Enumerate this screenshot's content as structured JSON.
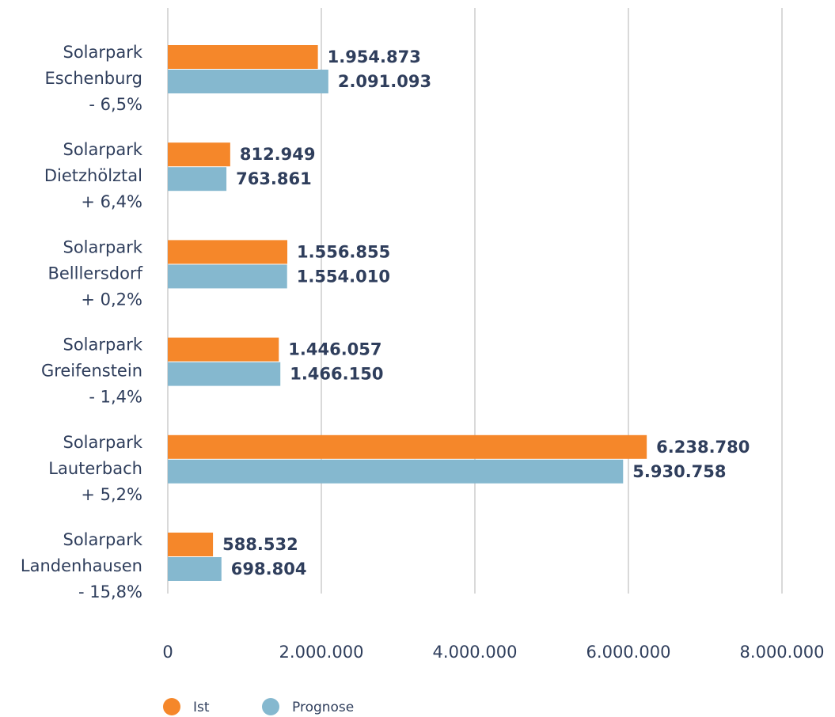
{
  "chart_data": {
    "type": "barh",
    "categories": [
      [
        "Solarpark",
        "Eschenburg",
        "- 6,5%"
      ],
      [
        "Solarpark",
        "Dietzhölztal",
        "+ 6,4%"
      ],
      [
        "Solarpark",
        "Belllersdorf",
        "+ 0,2%"
      ],
      [
        "Solarpark",
        "Greifenstein",
        "- 1,4%"
      ],
      [
        "Solarpark",
        "Lauterbach",
        "+ 5,2%"
      ],
      [
        "Solarpark",
        "Landenhausen",
        "- 15,8%"
      ]
    ],
    "series": [
      {
        "name": "Ist",
        "color": "#f5872a",
        "values": [
          1954873,
          812949,
          1556855,
          1446057,
          6238780,
          588532
        ],
        "value_labels": [
          "1.954.873",
          "812.949",
          "1.556.855",
          "1.446.057",
          "6.238.780",
          "588.532"
        ]
      },
      {
        "name": "Prognose",
        "color": "#85b8cf",
        "values": [
          2091093,
          763861,
          1554010,
          1466150,
          5930758,
          698804
        ],
        "value_labels": [
          "2.091.093",
          "763.861",
          "1.554.010",
          "1.466.150",
          "5.930.758",
          "698.804"
        ]
      }
    ],
    "xlim": [
      0,
      8000000
    ],
    "xticks": [
      0,
      {
        "value": 2000000,
        "label": "2.000.000"
      },
      {
        "value": 4000000,
        "label": "4.000.000"
      },
      {
        "value": 6000000,
        "label": "6.000.000"
      },
      {
        "value": 8000000,
        "label": "8.000.000"
      }
    ],
    "grid": true,
    "legend": "bottom-left"
  }
}
